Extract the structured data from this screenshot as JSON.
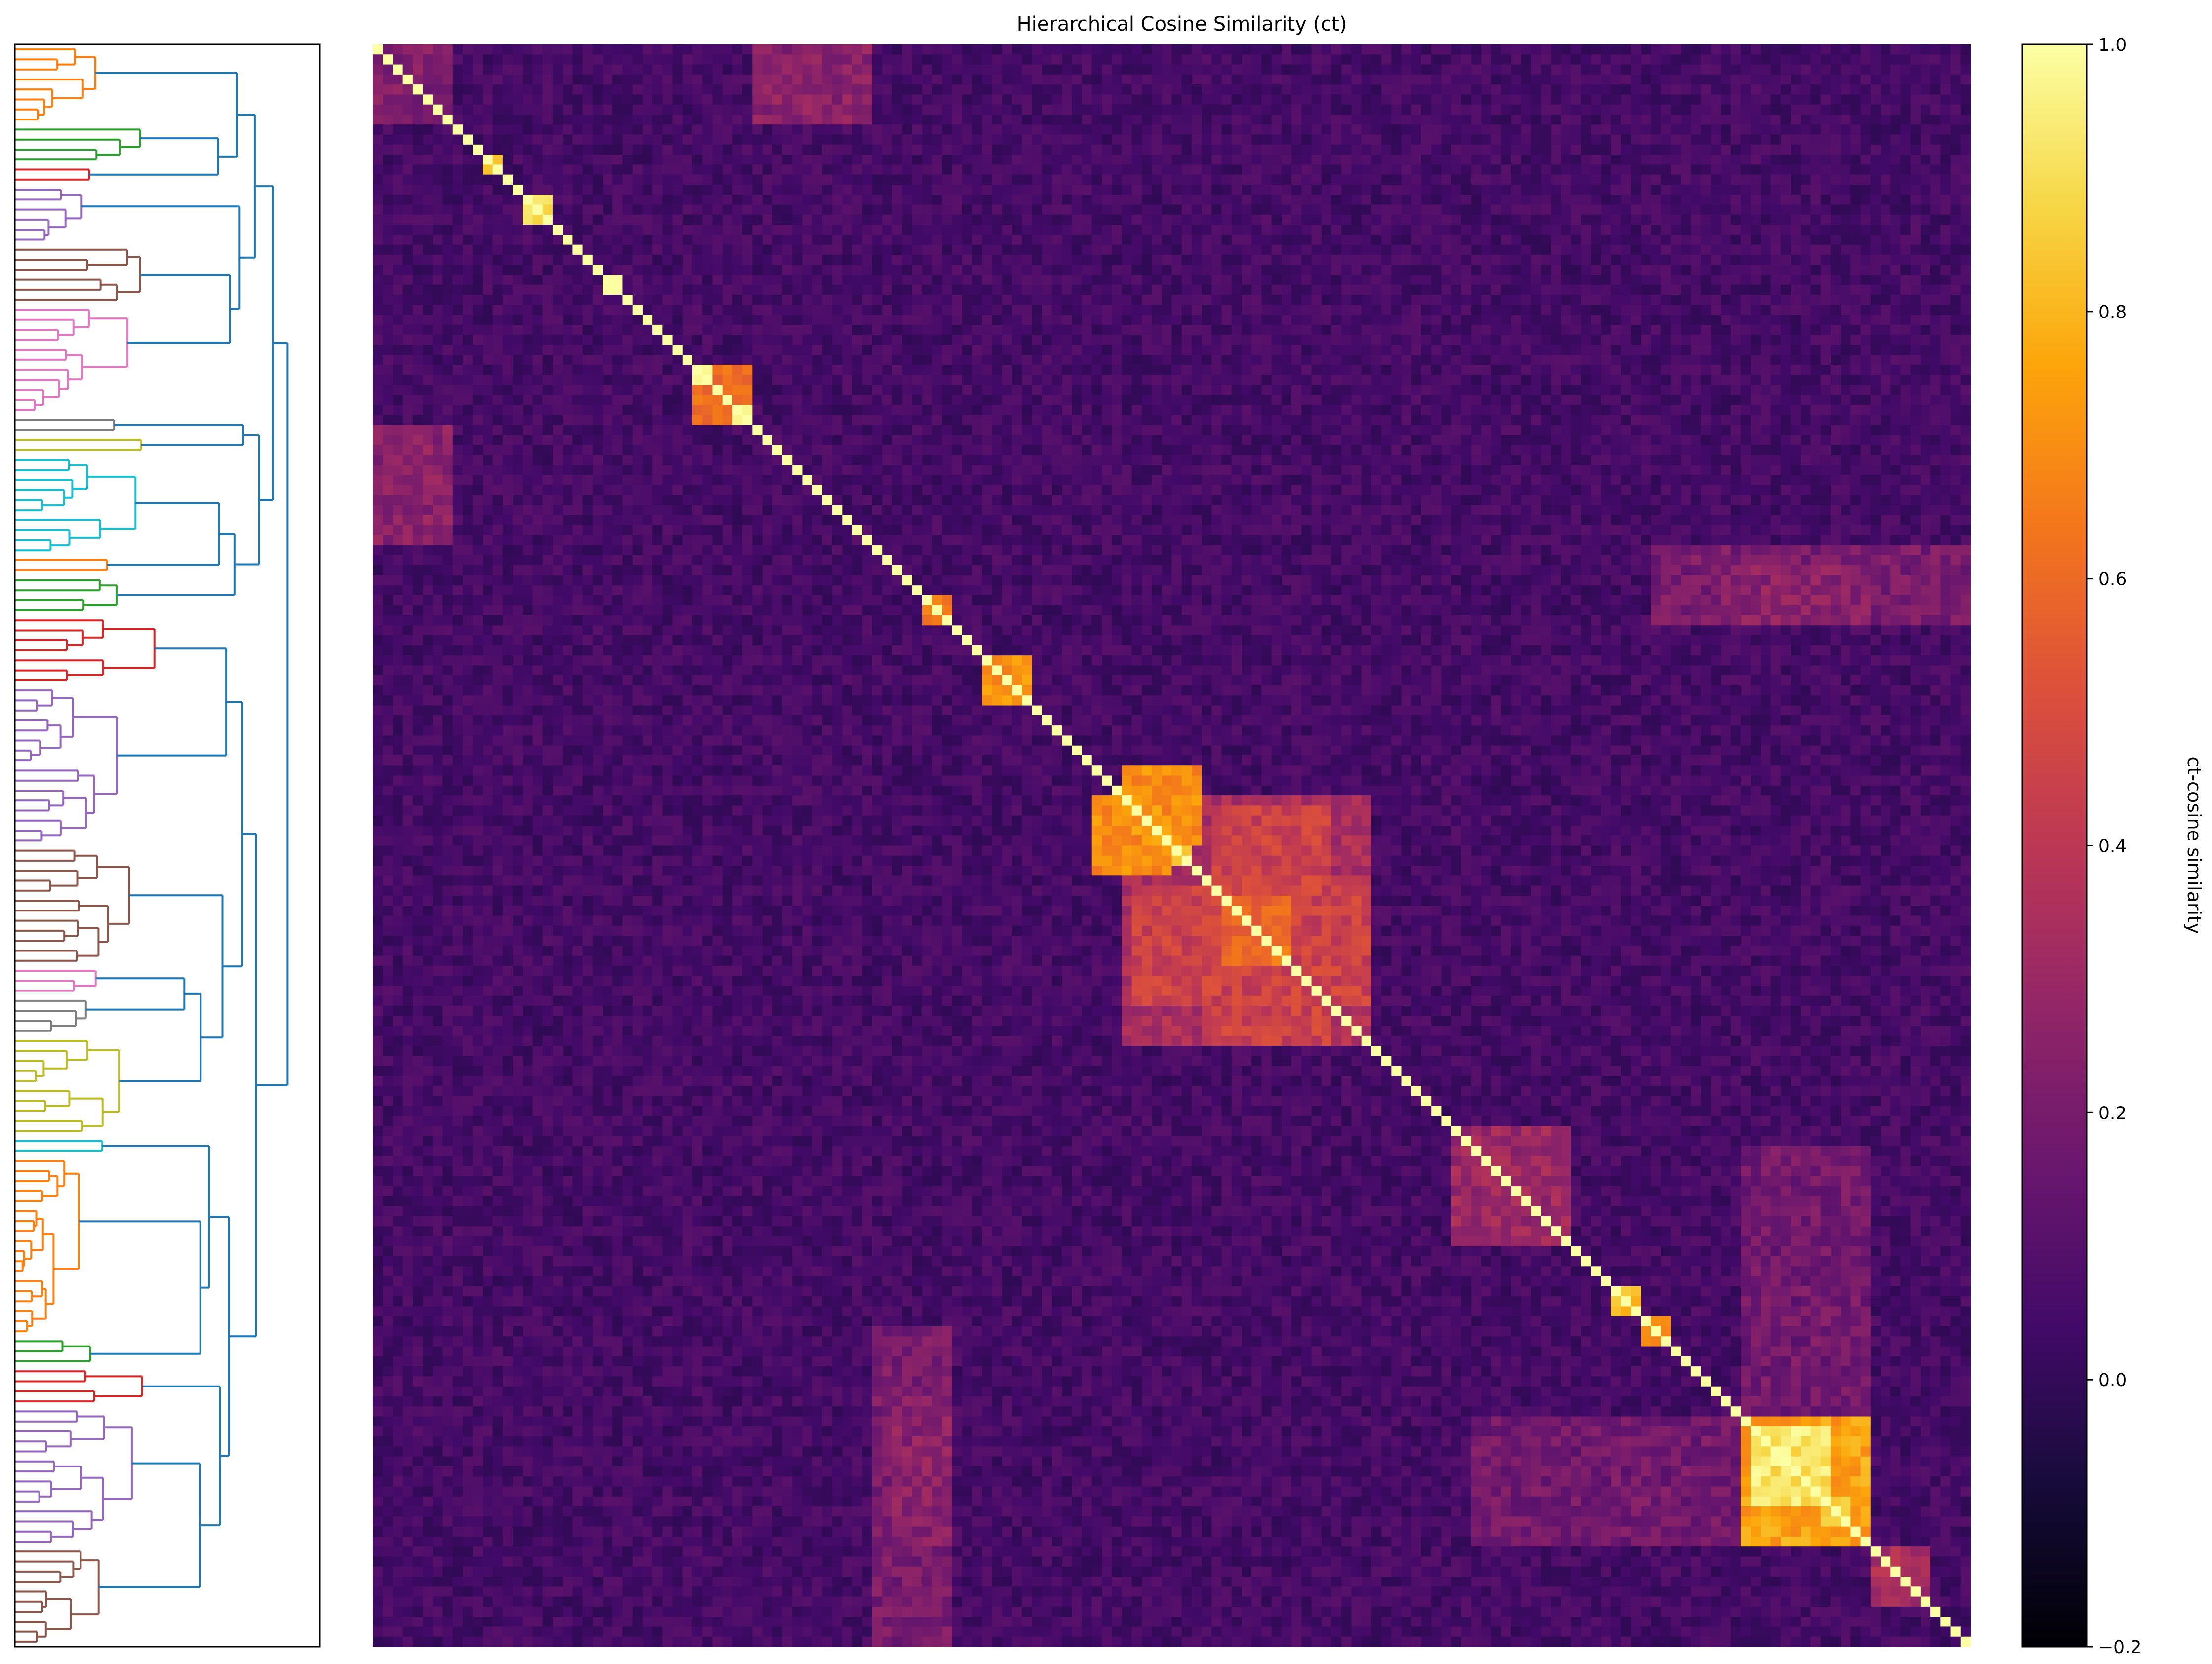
{
  "chart_data": {
    "type": "heatmap",
    "title": "Hierarchical Cosine Similarity (ct)",
    "colormap": "inferno",
    "n_items": 160,
    "matrix_size": [
      160,
      160
    ],
    "value_range": [
      -0.2,
      1.0
    ],
    "colorbar": {
      "label": "ct-cosine similarity",
      "ticks": [
        -0.2,
        0.0,
        0.2,
        0.4,
        0.6,
        0.8,
        1.0
      ],
      "tick_labels": [
        "−0.2",
        "0.0",
        "0.2",
        "0.4",
        "0.6",
        "0.8",
        "1.0"
      ]
    },
    "diagonal_value": 1.0,
    "background_value": 0.05,
    "blocks": [
      {
        "rows": [
          0,
          8
        ],
        "cols": [
          0,
          8
        ],
        "value": 0.22
      },
      {
        "rows": [
          0,
          8
        ],
        "cols": [
          38,
          50
        ],
        "value": 0.25
      },
      {
        "rows": [
          11,
          13
        ],
        "cols": [
          11,
          13
        ],
        "value": 0.8
      },
      {
        "rows": [
          15,
          18
        ],
        "cols": [
          15,
          18
        ],
        "value": 0.9
      },
      {
        "rows": [
          23,
          25
        ],
        "cols": [
          23,
          25
        ],
        "value": 0.95
      },
      {
        "rows": [
          32,
          34
        ],
        "cols": [
          32,
          34
        ],
        "value": 0.95
      },
      {
        "rows": [
          36,
          38
        ],
        "cols": [
          36,
          38
        ],
        "value": 0.95
      },
      {
        "rows": [
          32,
          38
        ],
        "cols": [
          32,
          38
        ],
        "value": 0.6
      },
      {
        "rows": [
          55,
          58
        ],
        "cols": [
          55,
          58
        ],
        "value": 0.65
      },
      {
        "rows": [
          61,
          66
        ],
        "cols": [
          61,
          66
        ],
        "value": 0.7
      },
      {
        "rows": [
          72,
          80
        ],
        "cols": [
          75,
          83
        ],
        "value": 0.7
      },
      {
        "rows": [
          75,
          100
        ],
        "cols": [
          75,
          100
        ],
        "value": 0.35
      },
      {
        "rows": [
          80,
          82
        ],
        "cols": [
          80,
          82
        ],
        "value": 0.9
      },
      {
        "rows": [
          85,
          92
        ],
        "cols": [
          85,
          92
        ],
        "value": 0.6
      },
      {
        "rows": [
          84,
          96
        ],
        "cols": [
          76,
          100
        ],
        "value": 0.45
      },
      {
        "rows": [
          108,
          120
        ],
        "cols": [
          108,
          120
        ],
        "value": 0.3
      },
      {
        "rows": [
          124,
          127
        ],
        "cols": [
          124,
          127
        ],
        "value": 0.85
      },
      {
        "rows": [
          127,
          130
        ],
        "cols": [
          127,
          130
        ],
        "value": 0.75
      },
      {
        "rows": [
          137,
          150
        ],
        "cols": [
          137,
          150
        ],
        "value": 0.75
      },
      {
        "rows": [
          138,
          146
        ],
        "cols": [
          138,
          146
        ],
        "value": 0.92
      },
      {
        "rows": [
          145,
          148
        ],
        "cols": [
          145,
          148
        ],
        "value": 0.9
      },
      {
        "rows": [
          137,
          150
        ],
        "cols": [
          110,
          137
        ],
        "value": 0.18
      },
      {
        "rows": [
          52,
          58
        ],
        "cols": [
          135,
          150
        ],
        "value": 0.25
      },
      {
        "rows": [
          128,
          160
        ],
        "cols": [
          50,
          58
        ],
        "value": 0.2
      },
      {
        "rows": [
          150,
          156
        ],
        "cols": [
          150,
          156
        ],
        "value": 0.35
      }
    ],
    "dendrogram": {
      "orientation": "left",
      "link_colors": [
        "#ff7f0e",
        "#2ca02c",
        "#d62728",
        "#9467bd",
        "#8c564b",
        "#e377c2",
        "#7f7f7f",
        "#bcbd22",
        "#17becf",
        "#1f77b4"
      ],
      "above_threshold_color": "#1f77b4"
    }
  }
}
